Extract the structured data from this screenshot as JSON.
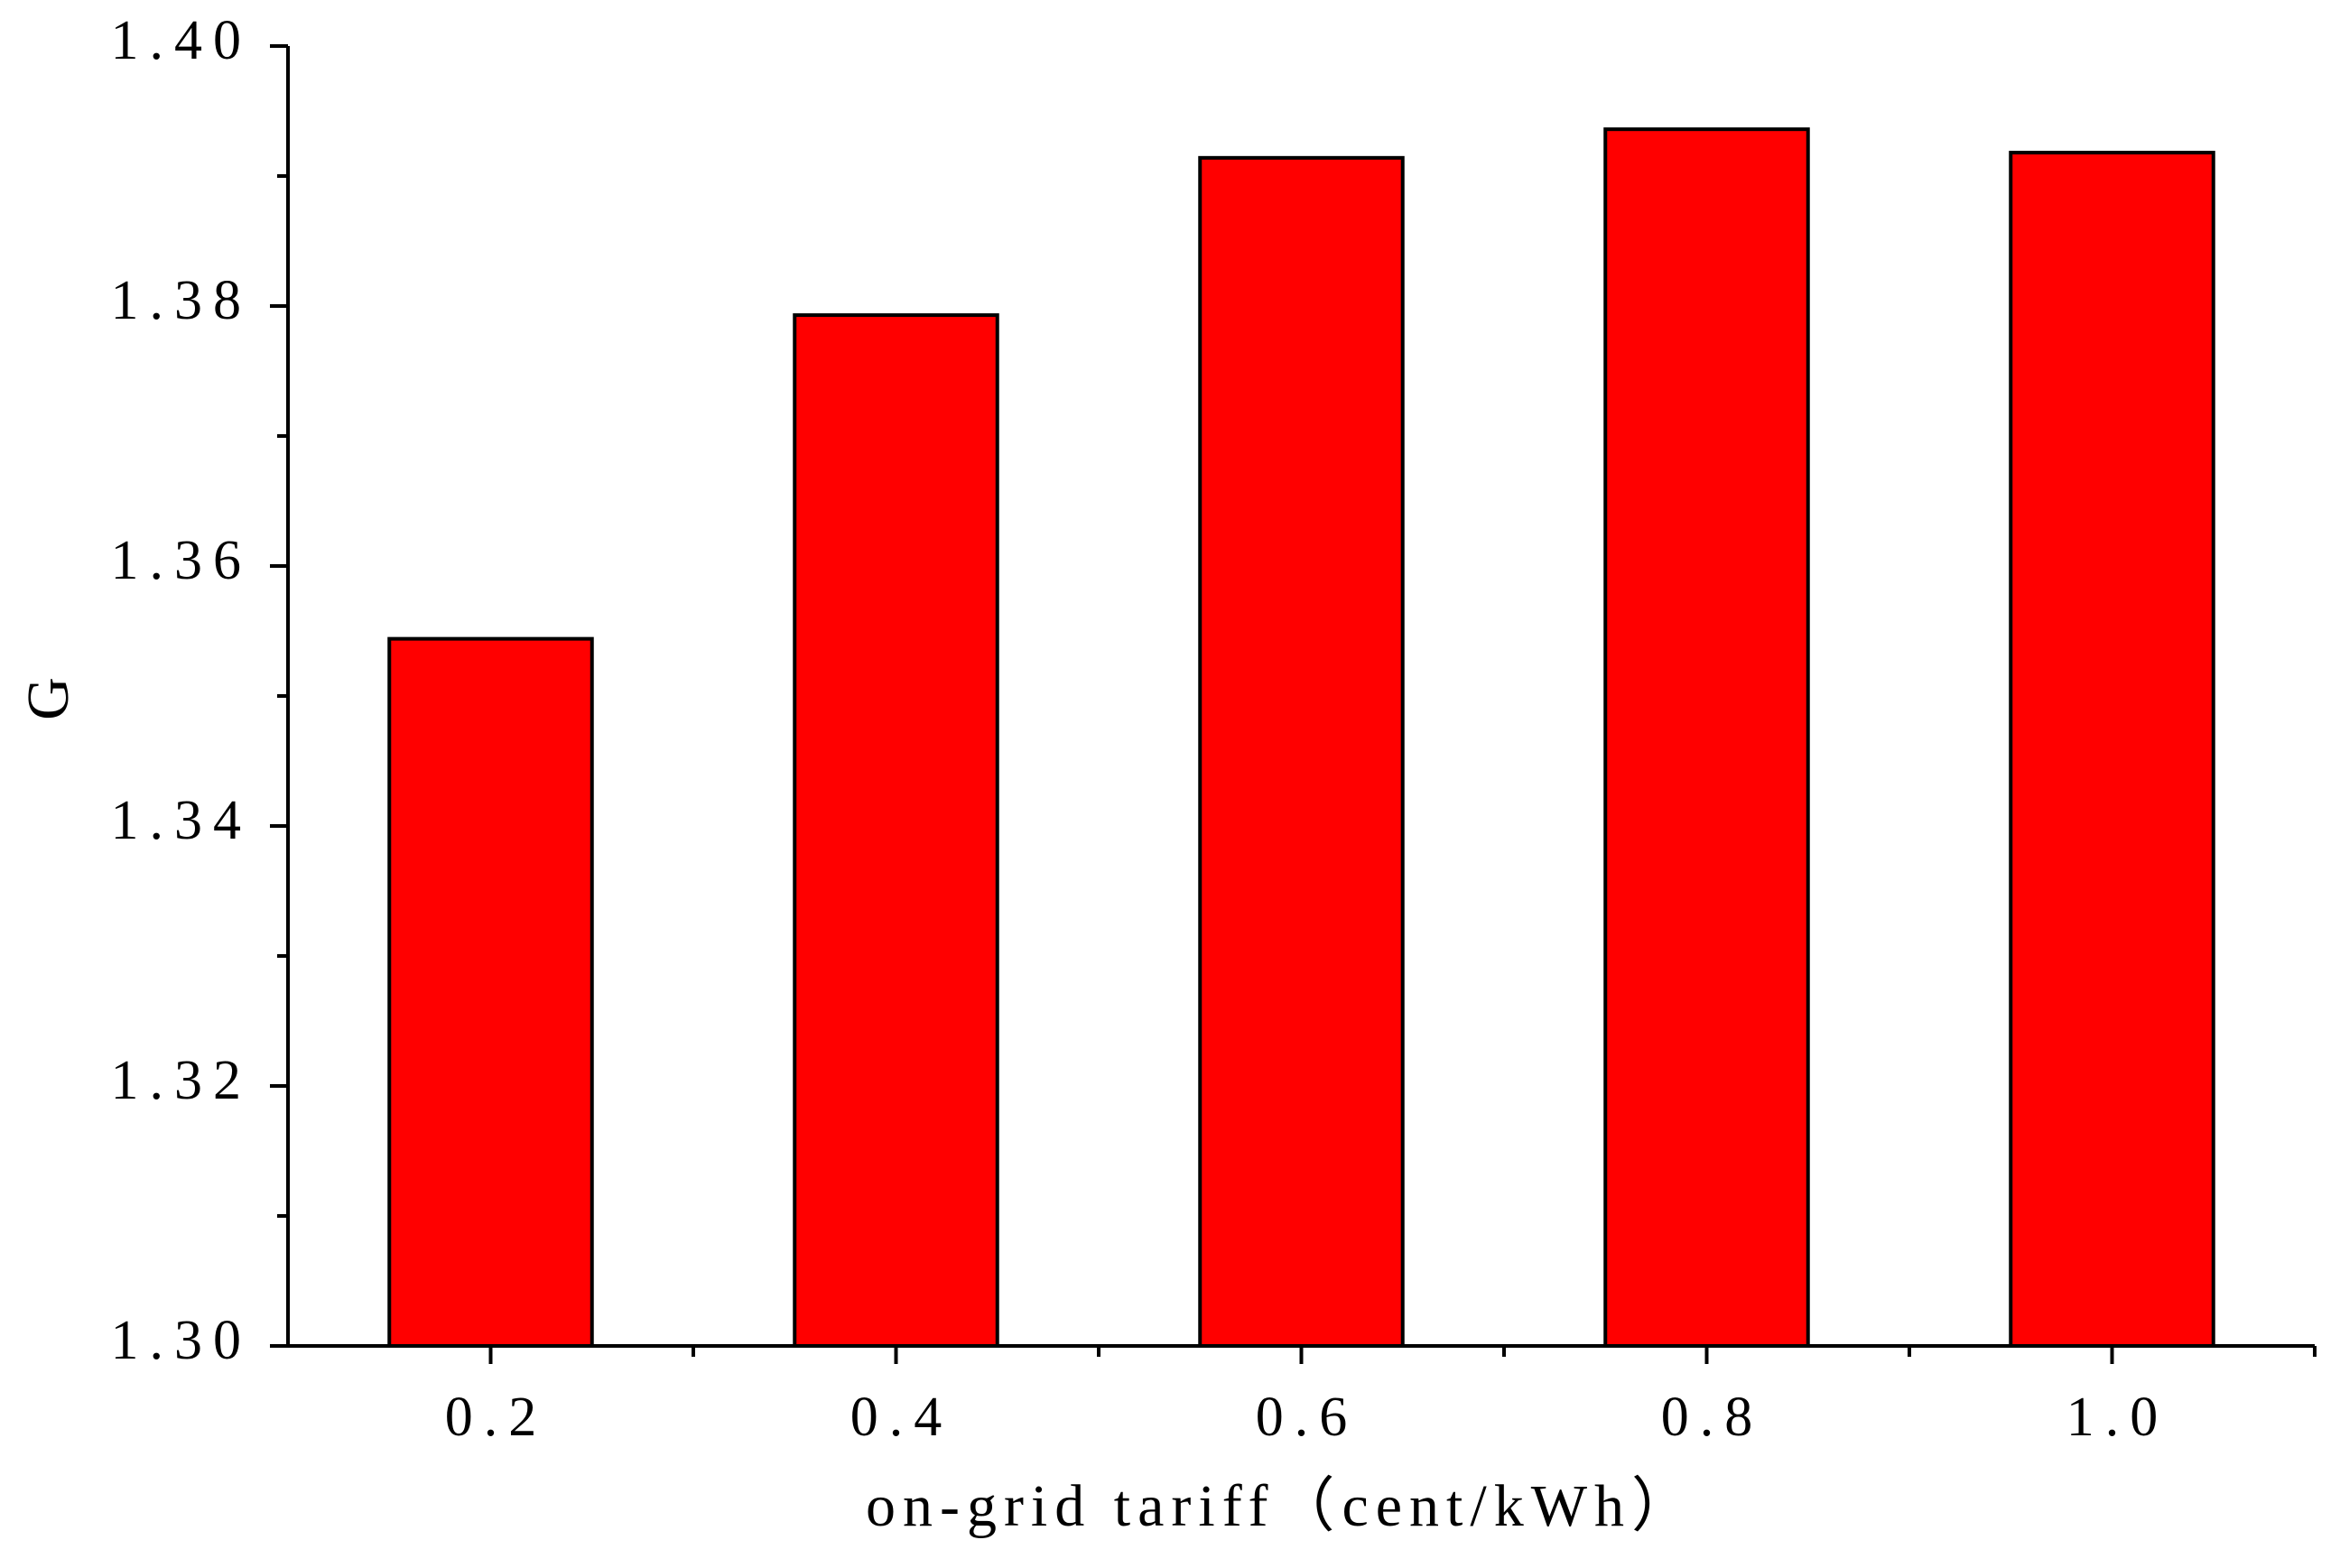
{
  "chart_data": {
    "type": "bar",
    "x_label": "on-grid tariff（cent/kWh）",
    "y_label": "G",
    "categories": [
      "0.2",
      "0.4",
      "0.6",
      "0.8",
      "1.0"
    ],
    "values": [
      1.3544,
      1.3793,
      1.3914,
      1.3936,
      1.3918
    ],
    "color": "#ff0000",
    "ylim": [
      1.3,
      1.4
    ],
    "yticks": [
      {
        "value": 1.3,
        "label": "1.30"
      },
      1.32,
      1.34,
      1.36,
      1.38,
      {
        "value": 1.4,
        "label": "1.40"
      }
    ],
    "grid": false
  }
}
